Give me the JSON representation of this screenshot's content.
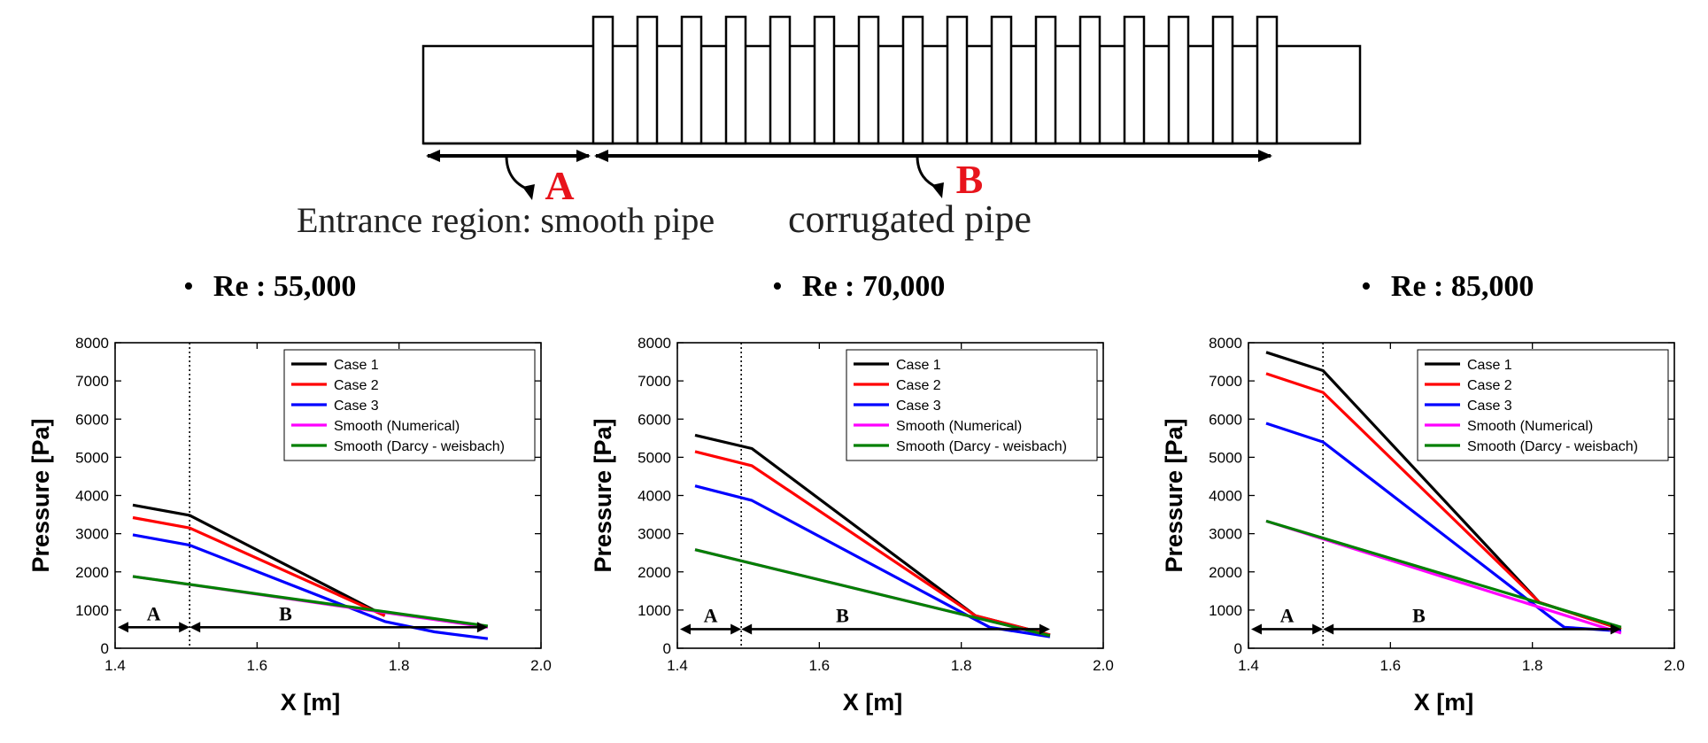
{
  "diagram": {
    "label_a": "A",
    "label_b": "B",
    "caption_a": "Entrance region: smooth pipe",
    "caption_b": "corrugated pipe",
    "rib_count": 16,
    "label_color": "#e8141c"
  },
  "series_colors": {
    "Case 1": "#000000",
    "Case 2": "#ff0000",
    "Case 3": "#0000ff",
    "Smooth (Numerical)": "#ff00ff",
    "Smooth (Darcy - weisbach)": "#008000"
  },
  "chart_data": [
    {
      "type": "line",
      "title": "Re : 55,000",
      "xlabel": "X [m]",
      "ylabel": "Pressure [Pa]",
      "xlim": [
        1.4,
        2.0
      ],
      "ylim": [
        0,
        8000
      ],
      "x_ticks": [
        "1.4",
        "1.6",
        "1.8",
        "2.0"
      ],
      "y_ticks": [
        "0",
        "1000",
        "2000",
        "3000",
        "4000",
        "5000",
        "6000",
        "7000",
        "8000"
      ],
      "legend_position": "top-right",
      "divider_x": 1.505,
      "region_labels": [
        "A",
        "B"
      ],
      "region_arrow_y": 550,
      "series": [
        {
          "name": "Case 1",
          "x": [
            1.425,
            1.505,
            1.78
          ],
          "y": [
            3750,
            3480,
            850
          ]
        },
        {
          "name": "Case 2",
          "x": [
            1.425,
            1.505,
            1.78
          ],
          "y": [
            3420,
            3150,
            850
          ]
        },
        {
          "name": "Case 3",
          "x": [
            1.425,
            1.505,
            1.78,
            1.85,
            1.925
          ],
          "y": [
            2970,
            2700,
            700,
            430,
            250
          ]
        },
        {
          "name": "Smooth (Numerical)",
          "x": [
            1.425,
            1.925
          ],
          "y": [
            1880,
            550
          ]
        },
        {
          "name": "Smooth (Darcy - weisbach)",
          "x": [
            1.425,
            1.925
          ],
          "y": [
            1880,
            580
          ]
        }
      ]
    },
    {
      "type": "line",
      "title": "Re : 70,000",
      "xlabel": "X [m]",
      "ylabel": "Pressure [Pa]",
      "xlim": [
        1.4,
        2.0
      ],
      "ylim": [
        0,
        8000
      ],
      "x_ticks": [
        "1.4",
        "1.6",
        "1.8",
        "2.0"
      ],
      "y_ticks": [
        "0",
        "1000",
        "2000",
        "3000",
        "4000",
        "5000",
        "6000",
        "7000",
        "8000"
      ],
      "legend_position": "top-right",
      "divider_x": 1.49,
      "region_labels": [
        "A",
        "B"
      ],
      "region_arrow_y": 500,
      "series": [
        {
          "name": "Case 1",
          "x": [
            1.425,
            1.505,
            1.82,
            1.925
          ],
          "y": [
            5580,
            5230,
            850,
            350
          ]
        },
        {
          "name": "Case 2",
          "x": [
            1.425,
            1.505,
            1.82,
            1.925
          ],
          "y": [
            5150,
            4780,
            850,
            350
          ]
        },
        {
          "name": "Case 3",
          "x": [
            1.425,
            1.505,
            1.84,
            1.925
          ],
          "y": [
            4250,
            3870,
            550,
            300
          ]
        },
        {
          "name": "Smooth (Numerical)",
          "x": [
            1.425,
            1.925
          ],
          "y": [
            2580,
            330
          ]
        },
        {
          "name": "Smooth (Darcy - weisbach)",
          "x": [
            1.425,
            1.925
          ],
          "y": [
            2580,
            330
          ]
        }
      ]
    },
    {
      "type": "line",
      "title": "Re : 85,000",
      "xlabel": "X [m]",
      "ylabel": "Pressure [Pa]",
      "xlim": [
        1.4,
        2.0
      ],
      "ylim": [
        0,
        8000
      ],
      "x_ticks": [
        "1.4",
        "1.6",
        "1.8",
        "2.0"
      ],
      "y_ticks": [
        "0",
        "1000",
        "2000",
        "3000",
        "4000",
        "5000",
        "6000",
        "7000",
        "8000"
      ],
      "legend_position": "top-right",
      "divider_x": 1.505,
      "region_labels": [
        "A",
        "B"
      ],
      "region_arrow_y": 500,
      "series": [
        {
          "name": "Case 1",
          "x": [
            1.425,
            1.505,
            1.81,
            1.925
          ],
          "y": [
            7750,
            7270,
            1200,
            500
          ]
        },
        {
          "name": "Case 2",
          "x": [
            1.425,
            1.505,
            1.81,
            1.925
          ],
          "y": [
            7190,
            6700,
            1200,
            500
          ]
        },
        {
          "name": "Case 3",
          "x": [
            1.425,
            1.505,
            1.83,
            1.845,
            1.925
          ],
          "y": [
            5890,
            5400,
            750,
            550,
            450
          ]
        },
        {
          "name": "Smooth (Numerical)",
          "x": [
            1.425,
            1.925
          ],
          "y": [
            3330,
            400
          ]
        },
        {
          "name": "Smooth (Darcy - weisbach)",
          "x": [
            1.425,
            1.925
          ],
          "y": [
            3330,
            550
          ]
        }
      ]
    }
  ]
}
